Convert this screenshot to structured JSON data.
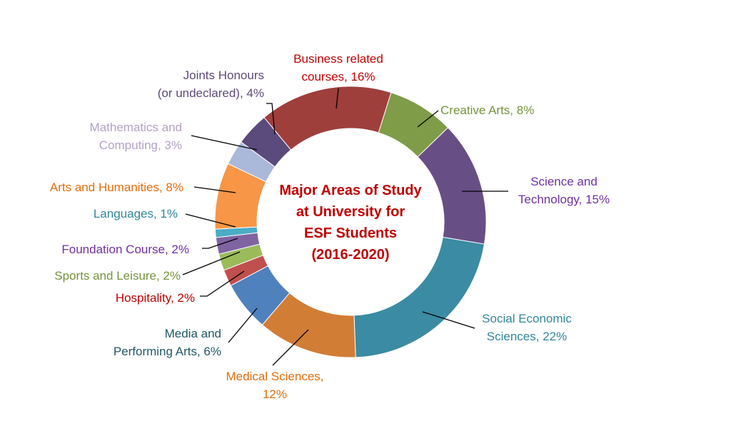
{
  "chart_data": {
    "type": "pie",
    "variant": "donut",
    "title": "Major Areas of Study at University for ESF Students (2016-2020)",
    "title_lines": [
      "Major Areas of Study",
      "at University for",
      "ESF Students",
      "(2016-2020)"
    ],
    "title_color": "#C00000",
    "unit": "%",
    "slices": [
      {
        "name": "Business related courses",
        "label_lines": [
          "Business related",
          "courses, 16%"
        ],
        "value": 16,
        "color": "#9E3F3C",
        "label_color": "#C00000"
      },
      {
        "name": "Creative Arts",
        "label_lines": [
          "Creative Arts, 8%"
        ],
        "value": 8,
        "color": "#7F9C48",
        "label_color": "#76923C"
      },
      {
        "name": "Science and Technology",
        "label_lines": [
          "Science and",
          "Technology, 15%"
        ],
        "value": 15,
        "color": "#674F86",
        "label_color": "#7030A0"
      },
      {
        "name": "Social Economic Sciences",
        "label_lines": [
          "Social Economic",
          "Sciences, 22%"
        ],
        "value": 22,
        "color": "#3A8BA3",
        "label_color": "#31859C"
      },
      {
        "name": "Medical Sciences",
        "label_lines": [
          "Medical Sciences,",
          "12%"
        ],
        "value": 12,
        "color": "#D27D35",
        "label_color": "#E36C09"
      },
      {
        "name": "Media and Performing Arts",
        "label_lines": [
          "Media and",
          "Performing Arts, 6%"
        ],
        "value": 6,
        "color": "#4F81BD",
        "label_color": "#215868"
      },
      {
        "name": "Hospitality",
        "label_lines": [
          "Hospitality, 2%"
        ],
        "value": 2,
        "color": "#C0504D",
        "label_color": "#C00000"
      },
      {
        "name": "Sports and Leisure",
        "label_lines": [
          "Sports and Leisure, 2%"
        ],
        "value": 2,
        "color": "#9BBB59",
        "label_color": "#76923C"
      },
      {
        "name": "Foundation Course",
        "label_lines": [
          "Foundation Course, 2%"
        ],
        "value": 2,
        "color": "#8064A2",
        "label_color": "#7030A0"
      },
      {
        "name": "Languages",
        "label_lines": [
          "Languages, 1%"
        ],
        "value": 1,
        "color": "#4BACC6",
        "label_color": "#31859C"
      },
      {
        "name": "Arts and Humanities",
        "label_lines": [
          "Arts and Humanities, 8%"
        ],
        "value": 8,
        "color": "#F79646",
        "label_color": "#E36C09"
      },
      {
        "name": "Mathematics and Computing",
        "label_lines": [
          "Mathematics and",
          "Computing, 3%"
        ],
        "value": 3,
        "color": "#AAB9D9",
        "label_color": "#B2A1C7"
      },
      {
        "name": "Joints Honours (or undeclared)",
        "label_lines": [
          "Joints Honours",
          "(or undeclared), 4%"
        ],
        "value": 4,
        "color": "#5B4A7C",
        "label_color": "#5F497A"
      }
    ]
  }
}
